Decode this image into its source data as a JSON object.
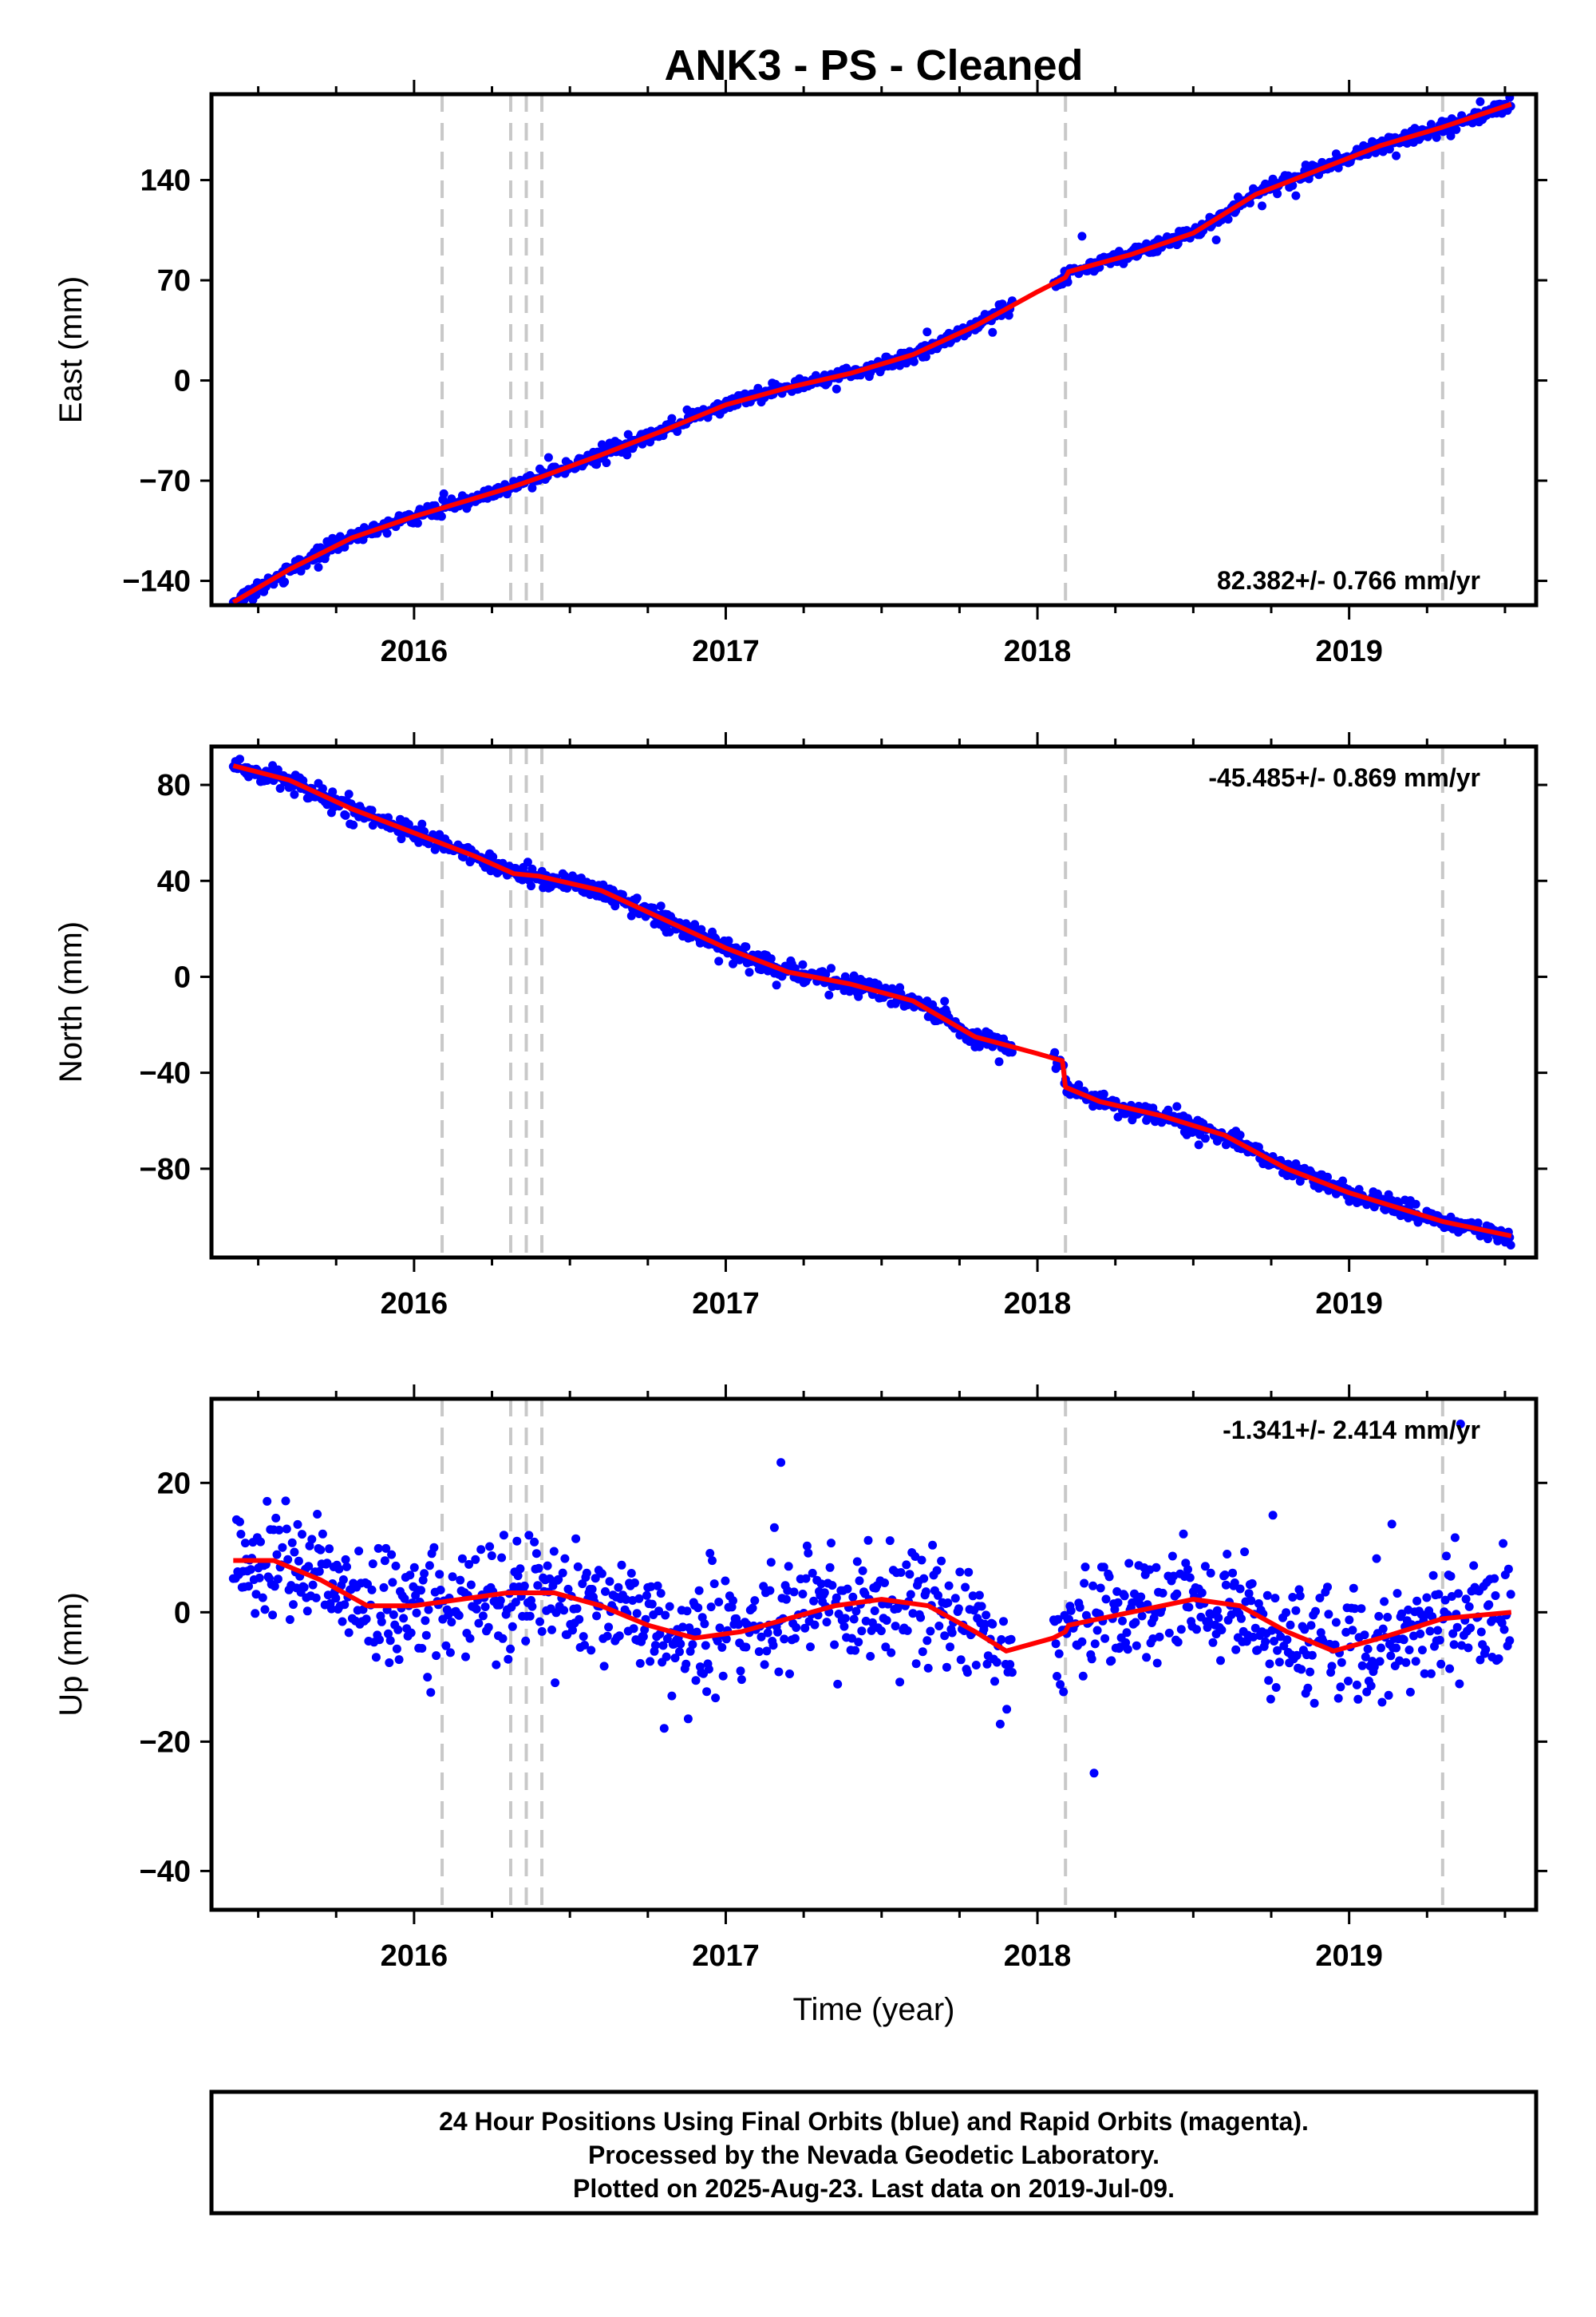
{
  "title": "ANK3  - PS - Cleaned",
  "chart_data": [
    {
      "type": "scatter",
      "panel": "east",
      "ylabel": "East (mm)",
      "xlabel": "",
      "xlim": [
        2015.35,
        2019.6
      ],
      "ylim": [
        -157,
        200
      ],
      "yticks": [
        -140,
        -70,
        0,
        70,
        140
      ],
      "xticks": [
        2016,
        2017,
        2018,
        2019
      ],
      "rate_text": "82.382+/- 0.766 mm/yr",
      "rate_position": "bottom-right",
      "data_color": "#0000ff",
      "model_color": "#ff0000",
      "model": {
        "x": [
          2015.42,
          2015.6,
          2015.8,
          2016.0,
          2016.2,
          2016.32,
          2016.4,
          2016.6,
          2016.8,
          2017.0,
          2017.2,
          2017.4,
          2017.6,
          2017.8,
          2018.0,
          2018.09,
          2018.1,
          2018.3,
          2018.5,
          2018.7,
          2018.9,
          2019.1,
          2019.3,
          2019.52
        ],
        "y": [
          -155,
          -132,
          -110,
          -95,
          -82,
          -74,
          -68,
          -52,
          -35,
          -17,
          -5,
          5,
          18,
          38,
          62,
          72,
          76,
          88,
          103,
          130,
          147,
          164,
          177,
          193
        ]
      },
      "noise_mm": 2.5
    },
    {
      "type": "scatter",
      "panel": "north",
      "ylabel": "North (mm)",
      "xlabel": "",
      "xlim": [
        2015.35,
        2019.6
      ],
      "ylim": [
        -117,
        96
      ],
      "yticks": [
        -80,
        -40,
        0,
        40,
        80
      ],
      "xticks": [
        2016,
        2017,
        2018,
        2019
      ],
      "rate_text": "-45.485+/- 0.869 mm/yr",
      "rate_position": "top-right",
      "data_color": "#0000ff",
      "model_color": "#ff0000",
      "model": {
        "x": [
          2015.42,
          2015.6,
          2015.8,
          2016.0,
          2016.2,
          2016.32,
          2016.4,
          2016.6,
          2016.8,
          2017.0,
          2017.2,
          2017.4,
          2017.6,
          2017.8,
          2018.0,
          2018.08,
          2018.09,
          2018.2,
          2018.4,
          2018.6,
          2018.8,
          2019.0,
          2019.2,
          2019.3,
          2019.52
        ],
        "y": [
          88,
          82,
          70,
          60,
          50,
          43,
          42,
          36,
          24,
          12,
          2,
          -3,
          -10,
          -25,
          -32,
          -35,
          -46,
          -52,
          -58,
          -66,
          -80,
          -90,
          -98,
          -102,
          -108
        ]
      },
      "noise_mm": 2.0
    },
    {
      "type": "scatter",
      "panel": "up",
      "ylabel": "Up (mm)",
      "xlabel": "Time (year)",
      "xlim": [
        2015.35,
        2019.6
      ],
      "ylim": [
        -46,
        33
      ],
      "yticks": [
        -40,
        -20,
        0,
        20
      ],
      "xticks": [
        2016,
        2017,
        2018,
        2019
      ],
      "rate_text": "-1.341+/- 2.414 mm/yr",
      "rate_position": "top-right",
      "data_color": "#0000ff",
      "model_color": "#ff0000",
      "model": {
        "x": [
          2015.42,
          2015.55,
          2015.7,
          2015.85,
          2016.0,
          2016.15,
          2016.3,
          2016.45,
          2016.6,
          2016.75,
          2016.9,
          2017.05,
          2017.2,
          2017.35,
          2017.5,
          2017.65,
          2017.8,
          2017.9,
          2018.05,
          2018.09,
          2018.1,
          2018.3,
          2018.5,
          2018.65,
          2018.8,
          2018.95,
          2019.1,
          2019.3,
          2019.52
        ],
        "y": [
          8,
          8,
          5,
          1,
          1,
          2,
          3,
          3,
          1,
          -2,
          -4,
          -3,
          -1,
          1,
          2,
          1,
          -3,
          -6,
          -4,
          -3,
          -2,
          0,
          2,
          1,
          -3,
          -6,
          -4,
          -1,
          0
        ]
      },
      "noise_mm": 4.5
    }
  ],
  "breaks": [
    2016.09,
    2016.31,
    2016.36,
    2016.41,
    2018.09,
    2019.3
  ],
  "footer": {
    "line1": "24 Hour Positions Using Final Orbits (blue) and Rapid Orbits (magenta).",
    "line2": "Processed by the Nevada Geodetic Laboratory.",
    "line3": "Plotted on 2025-Aug-23. Last data on 2019-Jul-09."
  }
}
